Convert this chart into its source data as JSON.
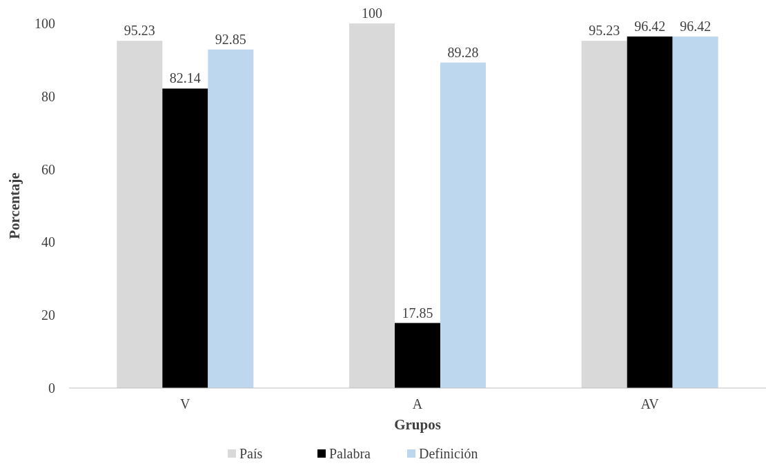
{
  "chart_data": {
    "type": "bar",
    "xlabel": "Grupos",
    "ylabel": "Porcentaje",
    "categories": [
      "V",
      "A",
      "AV"
    ],
    "series": [
      {
        "name": "País",
        "color": "#d9d9d9",
        "values": [
          95.23,
          100,
          95.23
        ]
      },
      {
        "name": "Palabra",
        "color": "#000000",
        "values": [
          82.14,
          17.85,
          96.42
        ]
      },
      {
        "name": "Definición",
        "color": "#bdd7ee",
        "values": [
          92.85,
          89.28,
          96.42
        ]
      }
    ],
    "ylim": [
      0,
      100
    ],
    "yticks": [
      0,
      20,
      40,
      60,
      80,
      100
    ],
    "grid": false,
    "legend": "bottom",
    "data_labels": true
  }
}
